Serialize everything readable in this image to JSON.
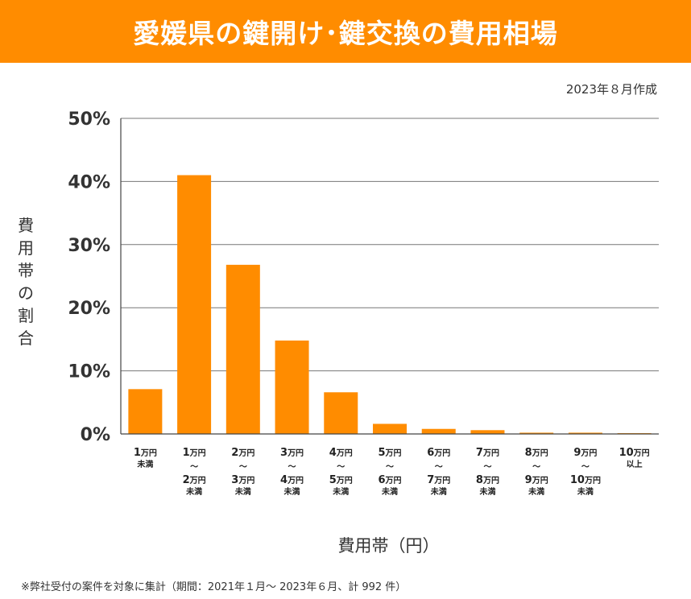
{
  "header": {
    "title": "愛媛県の鍵開け･鍵交換の費用相場"
  },
  "date_note": "2023年８月作成",
  "y_title_chars": [
    "費",
    "用",
    "帯",
    "の",
    "割",
    "合"
  ],
  "x_title": "費用帯（円）",
  "footnote": "※弊社受付の案件を対象に集計（期間：2021年１月～ 2023年６月、計 992 件）",
  "colors": {
    "accent": "#ff8c00",
    "bar": "#ff8c00",
    "grid": "#777777",
    "axis": "#444444"
  },
  "chart_data": {
    "type": "bar",
    "title": "愛媛県の鍵開け･鍵交換の費用相場",
    "xlabel": "費用帯（円）",
    "ylabel": "費用帯の割合",
    "ylim": [
      0,
      50
    ],
    "y_ticks": [
      0,
      10,
      20,
      30,
      40,
      50
    ],
    "y_tick_labels": [
      "0%",
      "10%",
      "20%",
      "30%",
      "40%",
      "50%"
    ],
    "grid": true,
    "categories": [
      {
        "lines": [
          {
            "num": "1",
            "unit": "万円"
          }
        ],
        "suffix": "未満"
      },
      {
        "lines": [
          {
            "num": "1",
            "unit": "万円"
          },
          {
            "num": "2",
            "unit": "万円"
          }
        ],
        "sep": "～",
        "suffix": "未満"
      },
      {
        "lines": [
          {
            "num": "2",
            "unit": "万円"
          },
          {
            "num": "3",
            "unit": "万円"
          }
        ],
        "sep": "～",
        "suffix": "未満"
      },
      {
        "lines": [
          {
            "num": "3",
            "unit": "万円"
          },
          {
            "num": "4",
            "unit": "万円"
          }
        ],
        "sep": "～",
        "suffix": "未満"
      },
      {
        "lines": [
          {
            "num": "4",
            "unit": "万円"
          },
          {
            "num": "5",
            "unit": "万円"
          }
        ],
        "sep": "～",
        "suffix": "未満"
      },
      {
        "lines": [
          {
            "num": "5",
            "unit": "万円"
          },
          {
            "num": "6",
            "unit": "万円"
          }
        ],
        "sep": "～",
        "suffix": "未満"
      },
      {
        "lines": [
          {
            "num": "6",
            "unit": "万円"
          },
          {
            "num": "7",
            "unit": "万円"
          }
        ],
        "sep": "～",
        "suffix": "未満"
      },
      {
        "lines": [
          {
            "num": "7",
            "unit": "万円"
          },
          {
            "num": "8",
            "unit": "万円"
          }
        ],
        "sep": "～",
        "suffix": "未満"
      },
      {
        "lines": [
          {
            "num": "8",
            "unit": "万円"
          },
          {
            "num": "9",
            "unit": "万円"
          }
        ],
        "sep": "～",
        "suffix": "未満"
      },
      {
        "lines": [
          {
            "num": "9",
            "unit": "万円"
          },
          {
            "num": "10",
            "unit": "万円"
          }
        ],
        "sep": "～",
        "suffix": "未満"
      },
      {
        "lines": [
          {
            "num": "10",
            "unit": "万円"
          }
        ],
        "suffix": "以上"
      }
    ],
    "values": [
      7.1,
      41.0,
      26.8,
      14.8,
      6.6,
      1.6,
      0.8,
      0.6,
      0.2,
      0.2,
      0.1
    ]
  }
}
